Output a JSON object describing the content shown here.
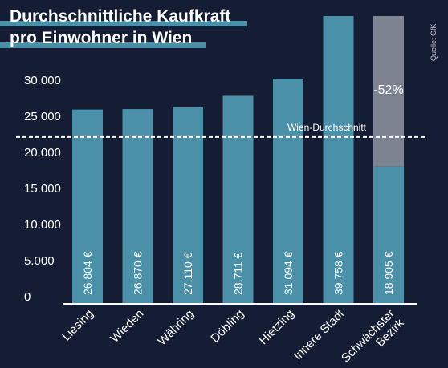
{
  "title": {
    "line1": "Durchschnittliche Kaufkraft",
    "line2": "pro Einwohner in Wien"
  },
  "source": "Quelle: GfK",
  "colors": {
    "background": "#141d33",
    "bar": "#4a90a8",
    "reduction": "#7e8392",
    "accent_band": "#4a90a8",
    "average_line": "#ffffff",
    "text": "#ffffff"
  },
  "chart_data": {
    "type": "bar",
    "title": "Durchschnittliche Kaufkraft pro Einwohner in Wien",
    "categories": [
      "Liesing",
      "Wieden",
      "Währing",
      "Döbling",
      "Hietzing",
      "Innere Stadt",
      "Schwächster Bezirk"
    ],
    "category_lines": [
      [
        "Liesing"
      ],
      [
        "Wieden"
      ],
      [
        "Währing"
      ],
      [
        "Döbling"
      ],
      [
        "Hietzing"
      ],
      [
        "Innere Stadt"
      ],
      [
        "Schwächster",
        "Bezirk"
      ]
    ],
    "values": [
      26804,
      26870,
      27110,
      28711,
      31094,
      39758,
      18905
    ],
    "value_labels": [
      "26.804 €",
      "26.870 €",
      "27.110 €",
      "28.711 €",
      "31.094 €",
      "39.758 €",
      "18.905 €"
    ],
    "yticks": [
      0,
      5000,
      10000,
      15000,
      20000,
      25000,
      30000
    ],
    "ytick_labels": [
      "0",
      "5.000",
      "10.000",
      "15.000",
      "20.000",
      "25.000",
      "30.000"
    ],
    "ylim": [
      0,
      39758
    ],
    "reference_line": {
      "label": "Wien-Durchschnitt",
      "value": 23000
    },
    "reduction_annotation": {
      "label": "-52%",
      "from_value": 39758,
      "to_value": 18905
    },
    "xlabel": "",
    "ylabel": "",
    "grid": false,
    "legend": "none"
  }
}
